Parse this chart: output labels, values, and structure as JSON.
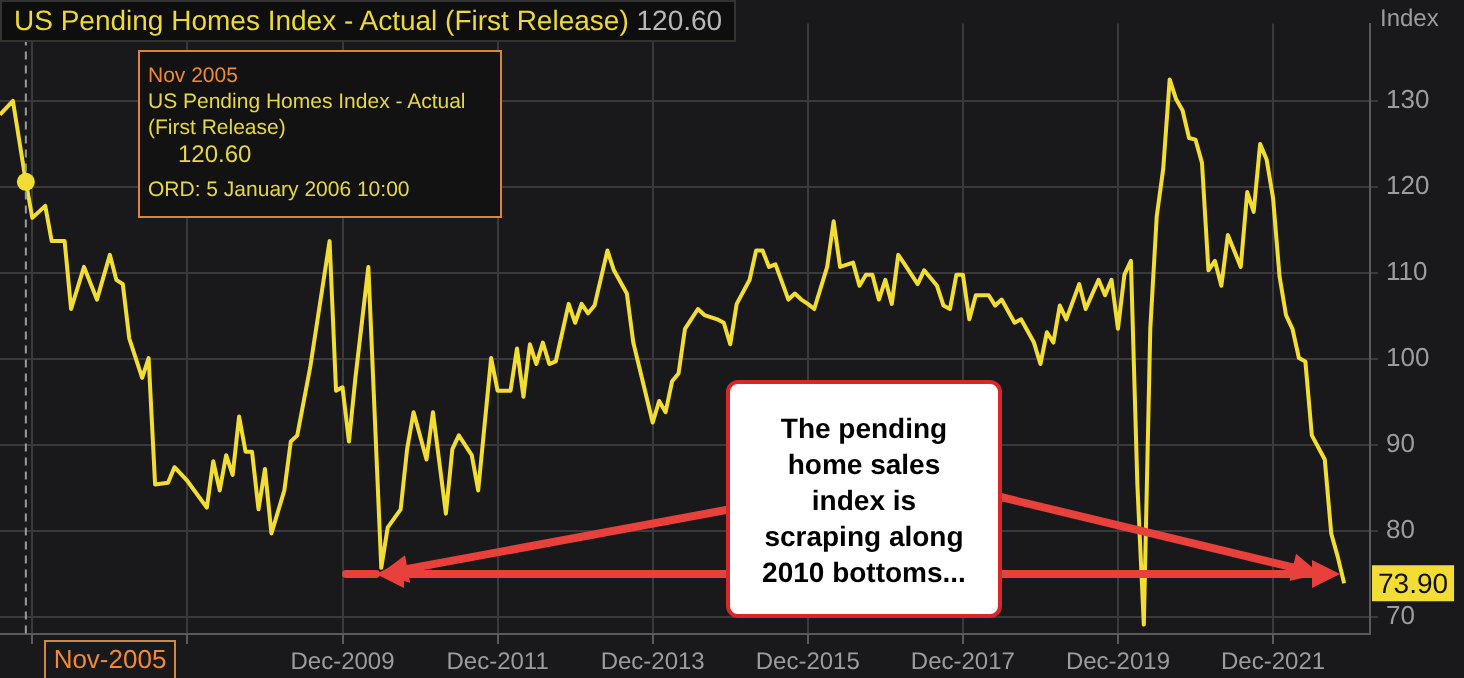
{
  "chart_data": {
    "type": "line",
    "title": "US Pending Homes Index - Actual (First Release)",
    "subtitle": "120.60",
    "ylabel": "Index",
    "x": [
      "2005-07",
      "2005-09",
      "2005-11",
      "2005-12",
      "2006-02",
      "2006-03",
      "2006-05",
      "2006-06",
      "2006-08",
      "2006-10",
      "2006-12",
      "2007-01",
      "2007-02",
      "2007-03",
      "2007-05",
      "2007-06",
      "2007-07",
      "2007-09",
      "2007-10",
      "2007-12",
      "2008-03",
      "2008-04",
      "2008-05",
      "2008-06",
      "2008-07",
      "2008-08",
      "2008-09",
      "2008-10",
      "2008-11",
      "2008-12",
      "2009-01",
      "2009-03",
      "2009-04",
      "2009-05",
      "2009-07",
      "2009-10",
      "2009-11",
      "2009-12",
      "2010-01",
      "2010-02",
      "2010-04",
      "2010-06",
      "2010-07",
      "2010-09",
      "2010-10",
      "2010-11",
      "2011-01",
      "2011-02",
      "2011-04",
      "2011-05",
      "2011-06",
      "2011-08",
      "2011-09",
      "2011-11",
      "2011-12",
      "2012-02",
      "2012-03",
      "2012-04",
      "2012-05",
      "2012-06",
      "2012-07",
      "2012-08",
      "2012-09",
      "2012-11",
      "2012-12",
      "2013-01",
      "2013-02",
      "2013-03",
      "2013-05",
      "2013-06",
      "2013-08",
      "2013-09",
      "2013-12",
      "2014-01",
      "2014-02",
      "2014-03",
      "2014-04",
      "2014-05",
      "2014-07",
      "2014-08",
      "2014-10",
      "2014-11",
      "2014-12",
      "2015-01",
      "2015-03",
      "2015-04",
      "2015-05",
      "2015-06",
      "2015-07",
      "2015-09",
      "2015-10",
      "2015-11",
      "2015-12",
      "2016-01",
      "2016-03",
      "2016-04",
      "2016-05",
      "2016-07",
      "2016-08",
      "2016-09",
      "2016-10",
      "2016-11",
      "2016-12",
      "2017-01",
      "2017-02",
      "2017-03",
      "2017-05",
      "2017-06",
      "2017-08",
      "2017-09",
      "2017-10",
      "2017-11",
      "2017-12",
      "2018-01",
      "2018-02",
      "2018-04",
      "2018-05",
      "2018-06",
      "2018-08",
      "2018-09",
      "2018-11",
      "2018-12",
      "2019-01",
      "2019-02",
      "2019-03",
      "2019-04",
      "2019-06",
      "2019-07",
      "2019-09",
      "2019-10",
      "2019-11",
      "2019-12",
      "2020-01",
      "2020-02",
      "2020-03",
      "2020-04",
      "2020-05",
      "2020-06",
      "2020-07",
      "2020-08",
      "2020-09",
      "2020-10",
      "2020-11",
      "2020-12",
      "2021-01",
      "2021-02",
      "2021-03",
      "2021-04",
      "2021-05",
      "2021-07",
      "2021-08",
      "2021-09",
      "2021-10",
      "2021-11",
      "2021-12",
      "2022-01",
      "2022-02",
      "2022-03",
      "2022-04",
      "2022-05",
      "2022-06",
      "2022-08",
      "2022-09",
      "2022-10",
      "2022-11"
    ],
    "series": [
      {
        "color": "#f2dd35",
        "values": [
          128.4,
          130.0,
          120.6,
          116.4,
          117.8,
          113.7,
          113.7,
          105.8,
          110.7,
          106.9,
          112.1,
          109.2,
          108.7,
          102.4,
          97.8,
          100.1,
          85.4,
          85.6,
          87.4,
          85.8,
          82.7,
          88.1,
          84.7,
          88.8,
          86.5,
          93.3,
          89.2,
          89.2,
          82.5,
          87.2,
          79.7,
          84.7,
          90.4,
          91.1,
          99.0,
          113.7,
          96.3,
          96.7,
          90.4,
          97.8,
          110.7,
          75.7,
          80.4,
          82.5,
          89.5,
          93.8,
          88.3,
          93.8,
          82.0,
          89.5,
          91.1,
          88.8,
          84.7,
          100.1,
          96.3,
          96.3,
          101.2,
          95.6,
          101.7,
          99.4,
          101.9,
          99.4,
          99.7,
          106.4,
          104.2,
          106.4,
          105.3,
          106.2,
          112.6,
          110.3,
          107.6,
          101.9,
          92.6,
          95.1,
          93.8,
          97.4,
          98.3,
          103.5,
          105.8,
          105.1,
          104.6,
          104.2,
          101.7,
          106.4,
          109.2,
          112.6,
          112.6,
          110.7,
          111.0,
          106.9,
          107.6,
          106.9,
          106.4,
          105.8,
          110.7,
          116.0,
          110.7,
          111.2,
          108.5,
          109.8,
          109.8,
          106.9,
          109.2,
          106.4,
          112.1,
          111.0,
          108.7,
          110.3,
          108.5,
          106.2,
          105.8,
          109.8,
          109.8,
          104.6,
          107.4,
          107.4,
          106.2,
          106.9,
          104.2,
          104.6,
          101.9,
          99.4,
          103.1,
          101.9,
          106.2,
          104.6,
          108.7,
          105.8,
          109.2,
          107.4,
          109.2,
          103.5,
          109.8,
          111.4,
          85.4,
          69.1,
          103.5,
          116.6,
          122.1,
          132.5,
          130.2,
          128.9,
          125.7,
          125.5,
          122.8,
          110.3,
          111.4,
          108.5,
          114.4,
          110.7,
          119.4,
          117.1,
          125.0,
          123.2,
          118.7,
          109.6,
          105.1,
          103.5,
          100.1,
          99.7,
          91.1,
          88.3,
          79.7,
          77.0,
          73.9
        ]
      }
    ],
    "xlim": [
      "2005-07",
      "2023-03"
    ],
    "xticks": [
      {
        "value": "2005-12",
        "label": null
      },
      {
        "value": "2007-12",
        "label": null
      },
      {
        "value": "2009-12",
        "label": "Dec-2009"
      },
      {
        "value": "2011-12",
        "label": "Dec-2011"
      },
      {
        "value": "2013-12",
        "label": "Dec-2013"
      },
      {
        "value": "2015-12",
        "label": "Dec-2015"
      },
      {
        "value": "2017-12",
        "label": "Dec-2017"
      },
      {
        "value": "2019-12",
        "label": "Dec-2019"
      },
      {
        "value": "2021-12",
        "label": "Dec-2021"
      }
    ],
    "ylim": [
      68,
      139
    ],
    "yticks": [
      70,
      80,
      90,
      100,
      110,
      120,
      130
    ],
    "grid": true,
    "legend": false,
    "marker": "none",
    "line_style": "solid",
    "ref_lines": [
      {
        "axis": "x",
        "value": "2005-11",
        "color": "#9a9a9a",
        "line_style": "dashed"
      }
    ],
    "annotations": [
      "Nov 2005",
      "US Pending Homes Index - Actual (First Release)",
      "120.60",
      "ORD: 5 January 2006 10:00",
      "Nov-2005",
      {
        "text": "73.90",
        "x": "2022-11",
        "y": 73.9
      },
      "The pending home sales index is scraping along 2010 bottoms..."
    ]
  }
}
